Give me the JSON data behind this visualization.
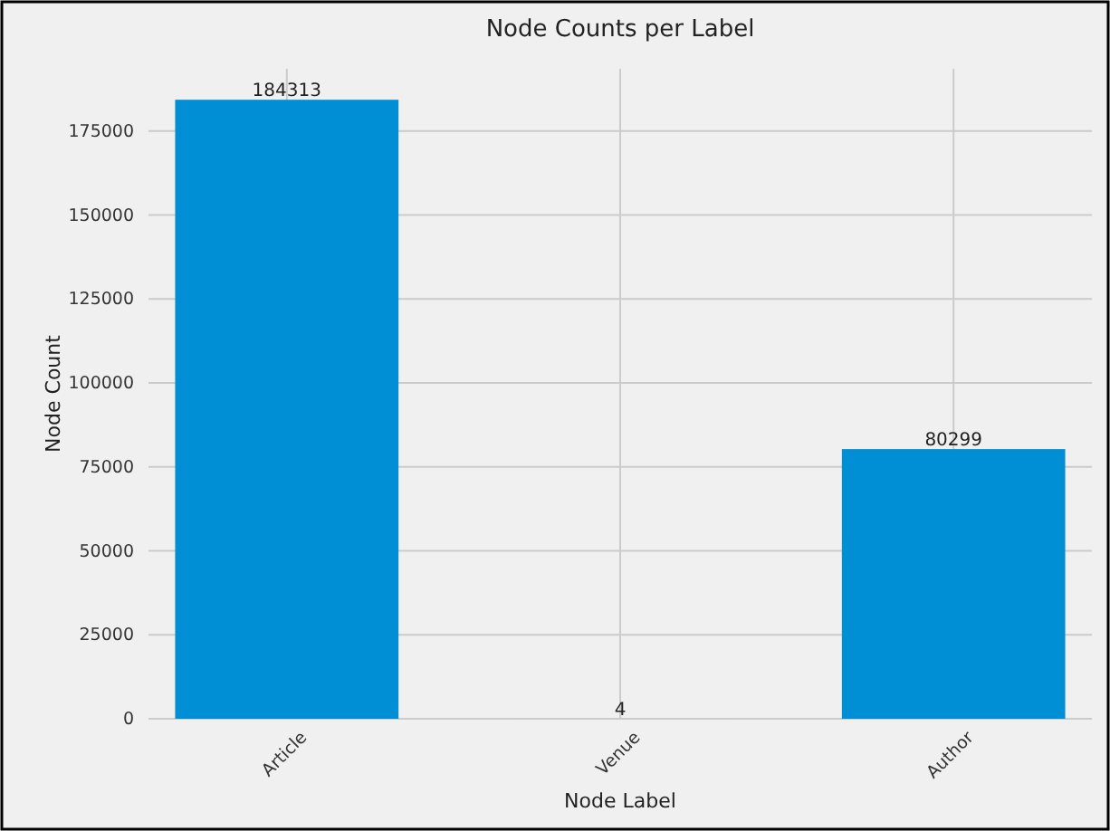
{
  "chart_data": {
    "type": "bar",
    "title": "Node Counts per Label",
    "xlabel": "Node Label",
    "ylabel": "Node Count",
    "categories": [
      "Article",
      "Venue",
      "Author"
    ],
    "values": [
      184313,
      4,
      80299
    ],
    "color": "#008fd5",
    "ylim": [
      0,
      193528
    ],
    "yticks": [
      0,
      25000,
      50000,
      75000,
      100000,
      125000,
      150000,
      175000
    ],
    "grid": true,
    "data_labels": true
  }
}
